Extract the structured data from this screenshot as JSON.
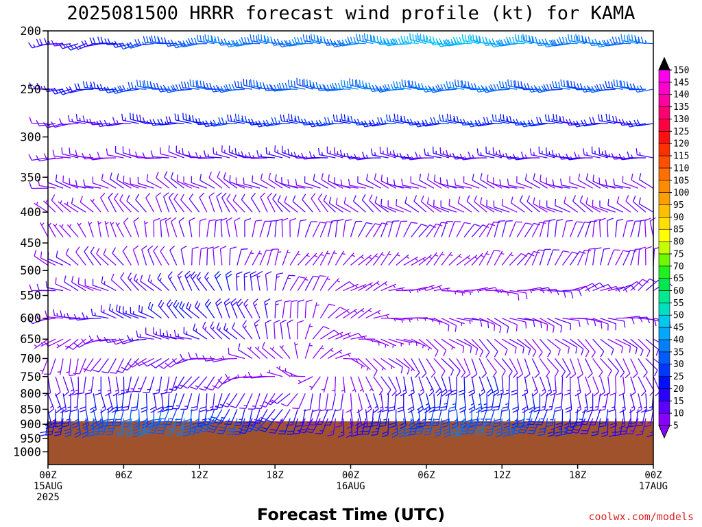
{
  "chart_data": [
    {
      "type": "wind-barb",
      "title": "2025081500 HRRR forecast wind profile (kt) for KAMA",
      "xlabel": "Forecast Time (UTC)",
      "ylabel": "",
      "y_scale": "log-pressure",
      "ylim": [
        1050,
        200
      ],
      "y_ticks": [
        "200",
        "250",
        "300",
        "350",
        "400",
        "450",
        "500",
        "550",
        "600",
        "650",
        "700",
        "750",
        "800",
        "850",
        "900",
        "950",
        "1000"
      ],
      "x_ticks": [
        {
          "hour": 0,
          "line1": "00Z",
          "line2": "15AUG",
          "line3": "2025"
        },
        {
          "hour": 6,
          "line1": "06Z",
          "line2": "",
          "line3": ""
        },
        {
          "hour": 12,
          "line1": "12Z",
          "line2": "",
          "line3": ""
        },
        {
          "hour": 18,
          "line1": "18Z",
          "line2": "",
          "line3": ""
        },
        {
          "hour": 24,
          "line1": "00Z",
          "line2": "16AUG",
          "line3": ""
        },
        {
          "hour": 30,
          "line1": "06Z",
          "line2": "",
          "line3": ""
        },
        {
          "hour": 36,
          "line1": "12Z",
          "line2": "",
          "line3": ""
        },
        {
          "hour": 42,
          "line1": "18Z",
          "line2": "",
          "line3": ""
        },
        {
          "hour": 48,
          "line1": "00Z",
          "line2": "17AUG",
          "line3": ""
        }
      ],
      "surface_pressure": 890,
      "surface_color": "#a0522d",
      "series": [
        {
          "pressure": 210,
          "speeds": [
            15,
            20,
            30,
            35,
            35,
            35,
            45,
            45,
            40,
            35,
            35
          ],
          "dirs": [
            255,
            260,
            265,
            270,
            270,
            270,
            275,
            270,
            270,
            270,
            270
          ]
        },
        {
          "pressure": 250,
          "speeds": [
            15,
            25,
            30,
            30,
            30,
            35,
            35,
            35,
            30,
            30,
            30
          ],
          "dirs": [
            260,
            265,
            270,
            270,
            275,
            275,
            270,
            270,
            270,
            270,
            270
          ]
        },
        {
          "pressure": 285,
          "speeds": [
            10,
            15,
            20,
            25,
            25,
            25,
            25,
            25,
            25,
            20,
            20
          ],
          "dirs": [
            265,
            270,
            275,
            270,
            270,
            270,
            270,
            270,
            270,
            270,
            270
          ]
        },
        {
          "pressure": 325,
          "speeds": [
            10,
            10,
            10,
            15,
            15,
            15,
            15,
            15,
            15,
            15,
            15
          ],
          "dirs": [
            270,
            275,
            280,
            280,
            280,
            275,
            275,
            275,
            275,
            275,
            275
          ]
        },
        {
          "pressure": 365,
          "speeds": [
            10,
            10,
            10,
            10,
            10,
            10,
            10,
            10,
            10,
            10,
            10
          ],
          "dirs": [
            280,
            290,
            300,
            300,
            290,
            290,
            290,
            290,
            290,
            290,
            290
          ]
        },
        {
          "pressure": 400,
          "speeds": [
            5,
            10,
            10,
            10,
            10,
            10,
            10,
            10,
            10,
            10,
            10
          ],
          "dirs": [
            300,
            320,
            330,
            330,
            320,
            310,
            300,
            300,
            300,
            300,
            300
          ]
        },
        {
          "pressure": 440,
          "speeds": [
            5,
            5,
            10,
            10,
            10,
            10,
            10,
            10,
            10,
            10,
            10
          ],
          "dirs": [
            320,
            340,
            350,
            360,
            10,
            20,
            30,
            30,
            20,
            10,
            360
          ]
        },
        {
          "pressure": 490,
          "speeds": [
            10,
            10,
            10,
            10,
            5,
            5,
            5,
            5,
            10,
            10,
            10
          ],
          "dirs": [
            300,
            320,
            340,
            10,
            30,
            40,
            50,
            40,
            30,
            20,
            10
          ]
        },
        {
          "pressure": 540,
          "speeds": [
            10,
            10,
            15,
            20,
            10,
            5,
            5,
            5,
            10,
            10,
            10
          ],
          "dirs": [
            280,
            300,
            320,
            340,
            20,
            60,
            80,
            90,
            90,
            70,
            50
          ]
        },
        {
          "pressure": 600,
          "speeds": [
            10,
            15,
            20,
            20,
            10,
            5,
            5,
            10,
            10,
            10,
            10
          ],
          "dirs": [
            260,
            280,
            310,
            330,
            360,
            60,
            100,
            110,
            110,
            100,
            90
          ]
        },
        {
          "pressure": 650,
          "speeds": [
            5,
            10,
            15,
            15,
            10,
            5,
            5,
            10,
            10,
            10,
            10
          ],
          "dirs": [
            230,
            250,
            280,
            310,
            360,
            90,
            120,
            130,
            130,
            130,
            120
          ]
        },
        {
          "pressure": 700,
          "speeds": [
            5,
            10,
            10,
            10,
            5,
            5,
            10,
            10,
            10,
            10,
            10
          ],
          "dirs": [
            190,
            210,
            240,
            270,
            330,
            120,
            140,
            150,
            150,
            150,
            140
          ]
        },
        {
          "pressure": 750,
          "speeds": [
            10,
            15,
            15,
            10,
            5,
            5,
            15,
            20,
            15,
            10,
            10
          ],
          "dirs": [
            170,
            180,
            200,
            230,
            300,
            150,
            160,
            170,
            170,
            170,
            160
          ]
        },
        {
          "pressure": 800,
          "speeds": [
            15,
            20,
            20,
            15,
            10,
            10,
            20,
            25,
            20,
            15,
            15
          ],
          "dirs": [
            170,
            175,
            185,
            200,
            220,
            170,
            175,
            180,
            180,
            180,
            175
          ]
        },
        {
          "pressure": 850,
          "speeds": [
            20,
            30,
            30,
            25,
            15,
            15,
            25,
            30,
            25,
            20,
            15
          ],
          "dirs": [
            175,
            180,
            190,
            200,
            210,
            180,
            180,
            185,
            190,
            190,
            180
          ]
        },
        {
          "pressure": 880,
          "speeds": [
            20,
            35,
            35,
            30,
            20,
            15,
            30,
            35,
            30,
            20,
            15
          ],
          "dirs": [
            180,
            185,
            195,
            205,
            210,
            185,
            185,
            190,
            195,
            195,
            185
          ]
        }
      ]
    },
    {
      "type": "colorbar",
      "unit": "kt",
      "ticks": [
        "5",
        "10",
        "15",
        "20",
        "25",
        "30",
        "35",
        "40",
        "45",
        "50",
        "55",
        "60",
        "65",
        "70",
        "75",
        "80",
        "85",
        "90",
        "95",
        "100",
        "105",
        "110",
        "115",
        "120",
        "125",
        "130",
        "135",
        "140",
        "145",
        "150"
      ],
      "colors": [
        "#8a00ff",
        "#5c00ff",
        "#2a00ff",
        "#0010ff",
        "#0038ff",
        "#005cff",
        "#0080ff",
        "#00a8ff",
        "#00c8f0",
        "#00e0c0",
        "#00e890",
        "#00e850",
        "#20f020",
        "#70f800",
        "#c8ff00",
        "#ffff00",
        "#ffe000",
        "#ffc000",
        "#ffa000",
        "#ff8c00",
        "#ff7000",
        "#ff5000",
        "#ff3000",
        "#ff1010",
        "#ff0040",
        "#ff0070",
        "#ff00a0",
        "#ff00cc",
        "#ff00ee",
        "#000000"
      ]
    }
  ],
  "credit": "coolwx.com/models"
}
